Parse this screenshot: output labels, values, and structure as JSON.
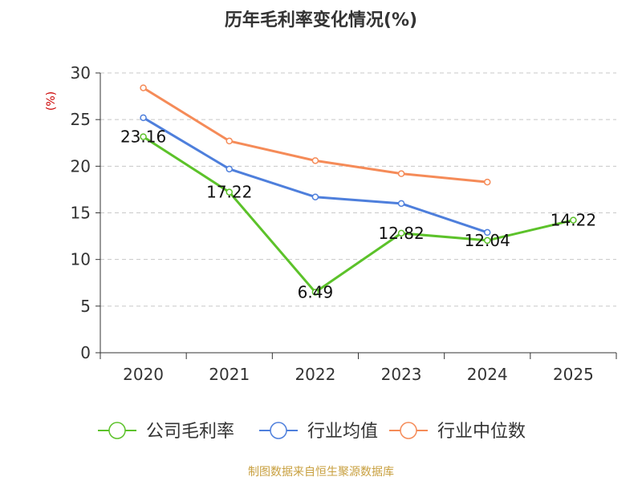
{
  "chart_data": {
    "type": "line",
    "title": "历年毛利率变化情况(%)",
    "ylabel": "(%)",
    "xlabel": "",
    "categories": [
      "2020",
      "2021",
      "2022",
      "2023",
      "2024",
      "2025"
    ],
    "ylim": [
      0,
      30
    ],
    "yticks": [
      0,
      5,
      10,
      15,
      20,
      25,
      30
    ],
    "grid": true,
    "legend_position": "bottom",
    "series": [
      {
        "name": "公司毛利率",
        "color": "#5cc22a",
        "values": [
          23.16,
          17.22,
          6.49,
          12.82,
          12.04,
          14.22
        ],
        "labels": [
          "23.16",
          "17.22",
          "6.49",
          "12.82",
          "12.04",
          "14.22"
        ]
      },
      {
        "name": "行业均值",
        "color": "#4e7fdc",
        "values": [
          25.2,
          19.7,
          16.7,
          16.0,
          12.9,
          null
        ]
      },
      {
        "name": "行业中位数",
        "color": "#f58b58",
        "values": [
          28.4,
          22.7,
          20.6,
          19.2,
          18.3,
          null
        ]
      }
    ]
  },
  "colors": {
    "ylabel": "#cc0000",
    "source": "#c8a040",
    "axis": "#333333",
    "grid": "#c8c8c8"
  },
  "source_text": "制图数据来自恒生聚源数据库"
}
